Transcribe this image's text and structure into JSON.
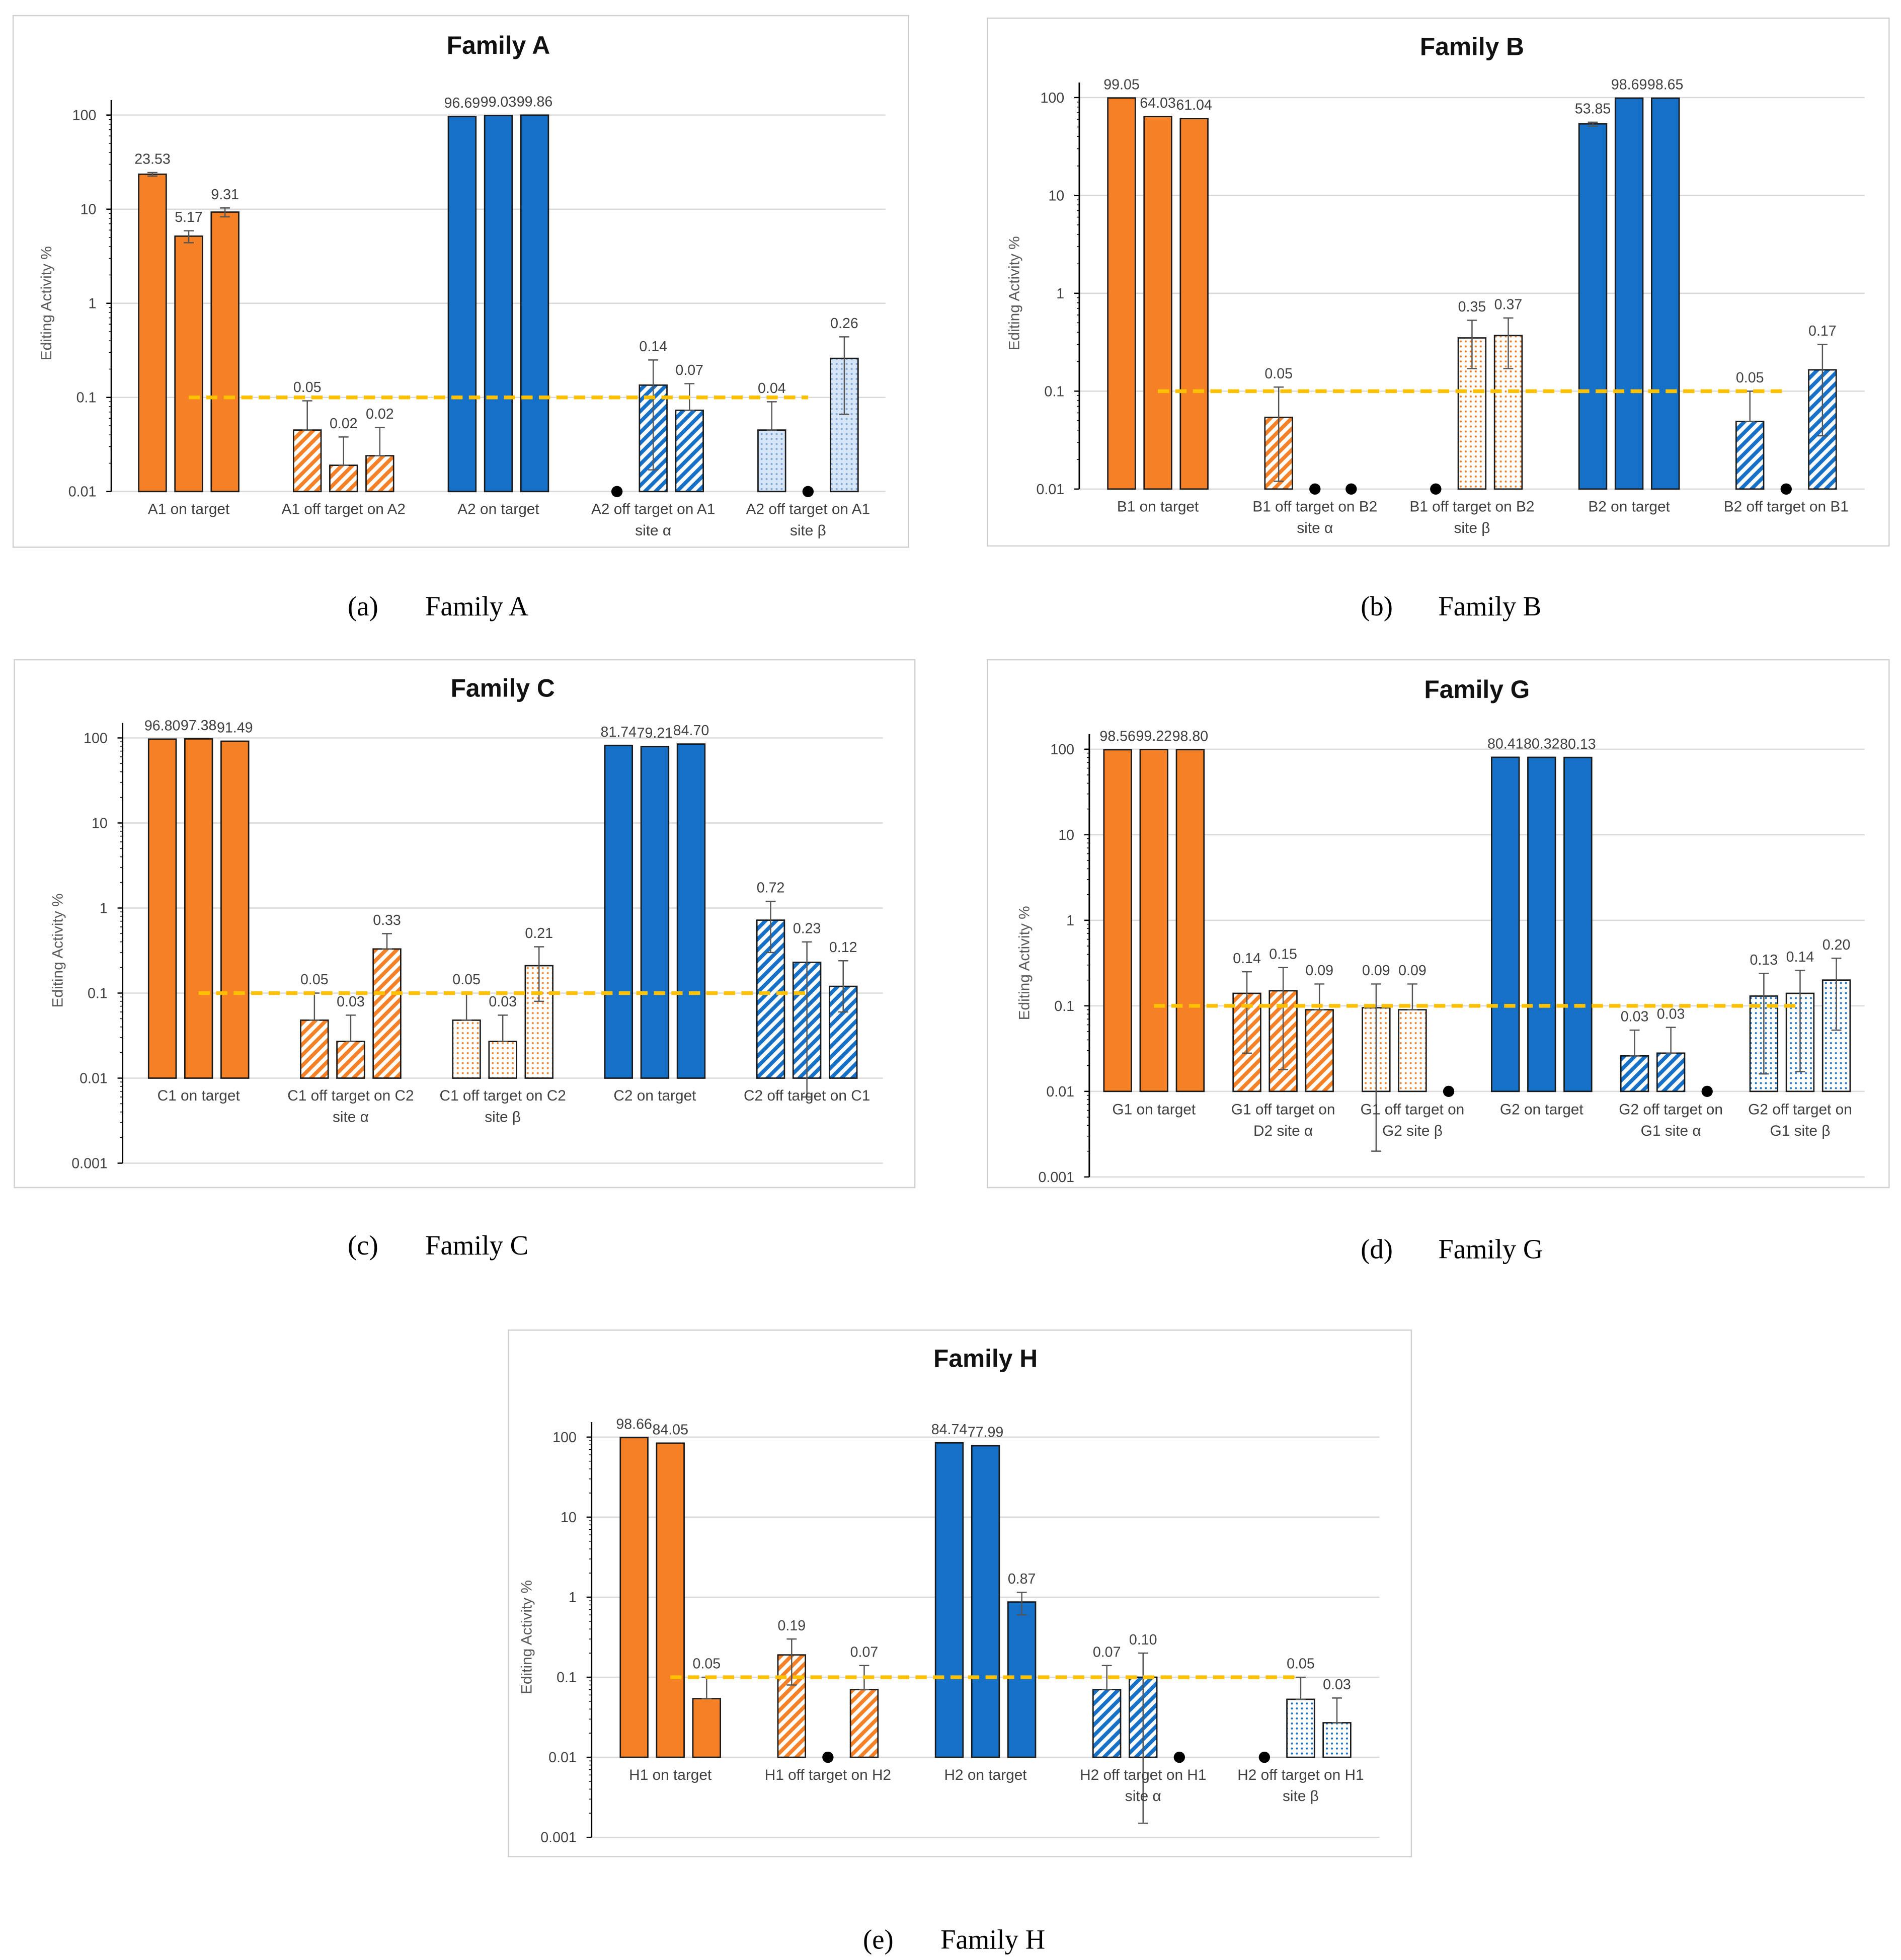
{
  "colors": {
    "orange": "#F58025",
    "blue": "#1570C8",
    "lightblue": "#D6E6F7",
    "threshold": "#FFC000",
    "grid": "#D9D9D9"
  },
  "chart_data": [
    {
      "type": "bar",
      "title": "Family A",
      "caption_letter": "(a)",
      "caption": "Family A",
      "ylabel": "Editing Activity %",
      "yscale": "log",
      "ylim": [
        0.01,
        100
      ],
      "yticks": [
        "100",
        "10",
        "1",
        "0.1",
        "0.01"
      ],
      "threshold": 0.1,
      "groups": [
        {
          "label": [
            "A1 on target"
          ],
          "style": "solid-orange",
          "values": [
            23.53,
            5.17,
            9.31
          ],
          "labels": [
            "23.53",
            "5.17",
            "9.31"
          ],
          "err": [
            [
              22.5,
              24.5
            ],
            [
              4.4,
              5.9
            ],
            [
              8.3,
              10.3
            ]
          ]
        },
        {
          "label": [
            "A1 off target on A2"
          ],
          "style": "hatch-orange",
          "values": [
            0.045,
            0.019,
            0.024
          ],
          "labels": [
            "0.05",
            "0.02",
            "0.02"
          ],
          "err": [
            [
              0.045,
              0.092
            ],
            [
              0.019,
              0.038
            ],
            [
              0.024,
              0.048
            ]
          ]
        },
        {
          "label": [
            "A2 on target"
          ],
          "style": "solid-blue",
          "values": [
            96.69,
            99.03,
            99.86
          ],
          "labels": [
            "96.69",
            "99.03",
            "99.86"
          ],
          "err": [
            null,
            null,
            null
          ]
        },
        {
          "label": [
            "A2 off target on A1",
            "site α"
          ],
          "style": "hatch-blue",
          "values": [
            null,
            0.135,
            0.073
          ],
          "labels": [
            "",
            "0.14",
            "0.07"
          ],
          "err": [
            null,
            [
              0.017,
              0.25
            ],
            [
              0.073,
              0.14
            ]
          ]
        },
        {
          "label": [
            "A2 off target on A1",
            "site β"
          ],
          "style": "dots-lightblue",
          "values": [
            0.045,
            null,
            0.26
          ],
          "labels": [
            "0.04",
            "",
            "0.26"
          ],
          "err": [
            [
              0.045,
              0.09
            ],
            null,
            [
              0.066,
              0.44
            ]
          ]
        }
      ]
    },
    {
      "type": "bar",
      "title": "Family B",
      "caption_letter": "(b)",
      "caption": "Family B",
      "ylabel": "Editing Activity %",
      "yscale": "log",
      "ylim": [
        0.01,
        100
      ],
      "yticks": [
        "100",
        "10",
        "1",
        "0.1",
        "0.01"
      ],
      "threshold": 0.1,
      "groups": [
        {
          "label": [
            "B1 on target"
          ],
          "style": "solid-orange",
          "values": [
            99.05,
            64.03,
            61.04
          ],
          "labels": [
            "99.05",
            "64.03",
            "61.04"
          ],
          "err": [
            null,
            null,
            null
          ]
        },
        {
          "label": [
            "B1 off target on B2",
            "site α"
          ],
          "style": "hatch-orange",
          "values": [
            0.054,
            null,
            null
          ],
          "labels": [
            "0.05",
            "",
            ""
          ],
          "err": [
            [
              0.012,
              0.11
            ],
            null,
            null
          ]
        },
        {
          "label": [
            "B1 off target on B2",
            "site β"
          ],
          "style": "dots-orange",
          "values": [
            null,
            0.35,
            0.37
          ],
          "labels": [
            "",
            "0.35",
            "0.37"
          ],
          "err": [
            null,
            [
              0.17,
              0.53
            ],
            [
              0.17,
              0.56
            ]
          ]
        },
        {
          "label": [
            "B2 on target"
          ],
          "style": "solid-blue",
          "values": [
            53.85,
            98.69,
            98.65
          ],
          "labels": [
            "53.85",
            "98.69",
            "98.65"
          ],
          "err": [
            [
              51,
              56
            ],
            null,
            null
          ]
        },
        {
          "label": [
            "B2 off target on B1"
          ],
          "style": "hatch-blue",
          "values": [
            0.049,
            null,
            0.165
          ],
          "labels": [
            "0.05",
            "",
            "0.17"
          ],
          "err": [
            [
              0.049,
              0.1
            ],
            null,
            [
              0.035,
              0.3
            ]
          ]
        }
      ]
    },
    {
      "type": "bar",
      "title": "Family C",
      "caption_letter": "(c)",
      "caption": "Family C",
      "ylabel": "Editing Activity %",
      "yscale": "log",
      "ylim": [
        0.001,
        100
      ],
      "yticks": [
        "100",
        "10",
        "1",
        "0.1",
        "0.01",
        "0.001"
      ],
      "threshold": 0.1,
      "groups": [
        {
          "label": [
            "C1 on target"
          ],
          "style": "solid-orange",
          "values": [
            96.8,
            97.38,
            91.49
          ],
          "labels": [
            "96.80",
            "97.38",
            "91.49"
          ],
          "err": [
            null,
            null,
            null
          ]
        },
        {
          "label": [
            "C1 off target on C2",
            "site α"
          ],
          "style": "hatch-orange",
          "values": [
            0.048,
            0.027,
            0.33
          ],
          "labels": [
            "0.05",
            "0.03",
            "0.33"
          ],
          "err": [
            [
              0.048,
              0.1
            ],
            [
              0.027,
              0.055
            ],
            [
              0.33,
              0.5
            ]
          ]
        },
        {
          "label": [
            "C1 off target on C2",
            "site β"
          ],
          "style": "dots-orange",
          "values": [
            0.048,
            0.027,
            0.21
          ],
          "labels": [
            "0.05",
            "0.03",
            "0.21"
          ],
          "err": [
            [
              0.048,
              0.1
            ],
            [
              0.027,
              0.055
            ],
            [
              0.08,
              0.35
            ]
          ]
        },
        {
          "label": [
            "C2 on target"
          ],
          "style": "solid-blue",
          "values": [
            81.74,
            79.21,
            84.7
          ],
          "labels": [
            "81.74",
            "79.21",
            "84.70"
          ],
          "err": [
            null,
            null,
            null
          ]
        },
        {
          "label": [
            "C2 off target on C1"
          ],
          "style": "hatch-blue",
          "values": [
            0.72,
            0.23,
            0.12
          ],
          "labels": [
            "0.72",
            "0.23",
            "0.12"
          ],
          "err": [
            [
              0.3,
              1.2
            ],
            [
              0.006,
              0.4
            ],
            [
              0.06,
              0.24
            ]
          ]
        }
      ]
    },
    {
      "type": "bar",
      "title": "Family G",
      "caption_letter": "(d)",
      "caption": "Family G",
      "ylabel": "Editing Activity %",
      "yscale": "log",
      "ylim": [
        0.001,
        100
      ],
      "yticks": [
        "100",
        "10",
        "1",
        "0.1",
        "0.01",
        "0.001"
      ],
      "threshold": 0.1,
      "groups": [
        {
          "label": [
            "G1 on target"
          ],
          "style": "solid-orange",
          "values": [
            98.56,
            99.22,
            98.8
          ],
          "labels": [
            "98.56",
            "99.22",
            "98.80"
          ],
          "err": [
            null,
            null,
            null
          ]
        },
        {
          "label": [
            "G1 off target on",
            "D2 site α"
          ],
          "style": "hatch-orange",
          "values": [
            0.14,
            0.15,
            0.09
          ],
          "labels": [
            "0.14",
            "0.15",
            "0.09"
          ],
          "err": [
            [
              0.028,
              0.25
            ],
            [
              0.018,
              0.28
            ],
            [
              0.09,
              0.18
            ]
          ]
        },
        {
          "label": [
            "G1 off target on",
            "G2 site β"
          ],
          "style": "dots-orange",
          "values": [
            0.095,
            0.09,
            null
          ],
          "labels": [
            "0.09",
            "0.09",
            ""
          ],
          "err": [
            [
              0.002,
              0.18
            ],
            [
              0.09,
              0.18
            ],
            null
          ]
        },
        {
          "label": [
            "G2 on target"
          ],
          "style": "solid-blue",
          "values": [
            80.41,
            80.32,
            80.13
          ],
          "labels": [
            "80.41",
            "80.32",
            "80.13"
          ],
          "err": [
            null,
            null,
            null
          ]
        },
        {
          "label": [
            "G2 off target on",
            "G1 site α"
          ],
          "style": "hatch-blue",
          "values": [
            0.026,
            0.028,
            null
          ],
          "labels": [
            "0.03",
            "0.03",
            ""
          ],
          "err": [
            [
              0.026,
              0.052
            ],
            [
              0.028,
              0.056
            ],
            null
          ]
        },
        {
          "label": [
            "G2 off target on",
            "G1 site β"
          ],
          "style": "dots-blue",
          "values": [
            0.13,
            0.14,
            0.2
          ],
          "labels": [
            "0.13",
            "0.14",
            "0.20"
          ],
          "err": [
            [
              0.016,
              0.24
            ],
            [
              0.017,
              0.26
            ],
            [
              0.052,
              0.36
            ]
          ]
        }
      ]
    },
    {
      "type": "bar",
      "title": "Family H",
      "caption_letter": "(e)",
      "caption": "Family H",
      "ylabel": "Editing Activity %",
      "yscale": "log",
      "ylim": [
        0.001,
        100
      ],
      "yticks": [
        "100",
        "10",
        "1",
        "0.1",
        "0.01",
        "0.001"
      ],
      "threshold": 0.1,
      "groups": [
        {
          "label": [
            "H1 on target"
          ],
          "style": "solid-orange",
          "values": [
            98.66,
            84.05,
            0.054
          ],
          "labels": [
            "98.66",
            "84.05",
            "0.05"
          ],
          "err": [
            null,
            null,
            [
              0.054,
              0.1
            ]
          ]
        },
        {
          "label": [
            "H1 off target on H2"
          ],
          "style": "hatch-orange",
          "values": [
            0.19,
            null,
            0.07
          ],
          "labels": [
            "0.19",
            "",
            "0.07"
          ],
          "err": [
            [
              0.08,
              0.3
            ],
            null,
            [
              0.07,
              0.14
            ]
          ]
        },
        {
          "label": [
            "H2 on target"
          ],
          "style": "solid-blue",
          "values": [
            84.74,
            77.99,
            0.87
          ],
          "labels": [
            "84.74",
            "77.99",
            "0.87"
          ],
          "err": [
            null,
            null,
            [
              0.6,
              1.15
            ]
          ]
        },
        {
          "label": [
            "H2 off target on H1",
            "site α"
          ],
          "style": "hatch-blue",
          "values": [
            0.07,
            0.1,
            null
          ],
          "labels": [
            "0.07",
            "0.10",
            ""
          ],
          "err": [
            [
              0.07,
              0.14
            ],
            [
              0.0015,
              0.2
            ],
            null
          ]
        },
        {
          "label": [
            "H2 off target on H1",
            "site β"
          ],
          "style": "dots-blue",
          "values": [
            null,
            0.053,
            0.027
          ],
          "labels": [
            "",
            "0.05",
            "0.03"
          ],
          "err": [
            null,
            [
              0.053,
              0.1
            ],
            [
              0.027,
              0.055
            ]
          ]
        }
      ]
    }
  ]
}
